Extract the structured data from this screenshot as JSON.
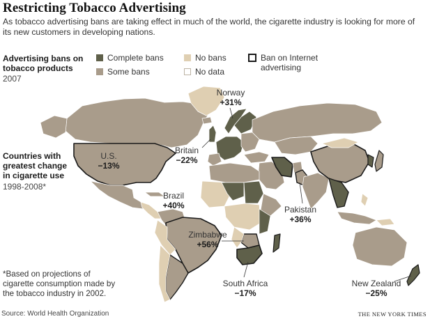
{
  "title": "Restricting Tobacco Advertising",
  "subtitle": "As tobacco advertising bans are taking effect in much of the world, the cigarette industry is looking for more of its new customers in developing nations.",
  "legend": {
    "heading_line1": "Advertising bans on",
    "heading_line2": "tobacco products",
    "year": "2007",
    "items": [
      {
        "label": "Complete bans",
        "color": "#5f604a"
      },
      {
        "label": "Some bans",
        "color": "#a99c8b"
      },
      {
        "label": "No bans",
        "color": "#dfcfb2"
      },
      {
        "label": "No data",
        "color": "#ffffff"
      },
      {
        "label_line1": "Ban on Internet",
        "label_line2": "advertising"
      }
    ]
  },
  "change": {
    "heading_line1": "Countries with",
    "heading_line2": "greatest change",
    "heading_line3": "in cigarette use",
    "years": "1998-2008*"
  },
  "callouts": [
    {
      "name": "Norway",
      "value": "+31%"
    },
    {
      "name": "U.S.",
      "value": "−13%"
    },
    {
      "name": "Britain",
      "value": "−22%"
    },
    {
      "name": "Brazil",
      "value": "+40%"
    },
    {
      "name": "Pakistan",
      "value": "+36%"
    },
    {
      "name": "Zimbabwe",
      "value": "+56%"
    },
    {
      "name": "South Africa",
      "value": "−17%"
    },
    {
      "name": "New Zealand",
      "value": "−25%"
    }
  ],
  "footnote": {
    "line1": "*Based on projections of",
    "line2": "cigarette consumption made by",
    "line3": "the tobacco industry in 2002."
  },
  "source": "Source: World Health Organization",
  "credit": "THE NEW YORK TIMES"
}
